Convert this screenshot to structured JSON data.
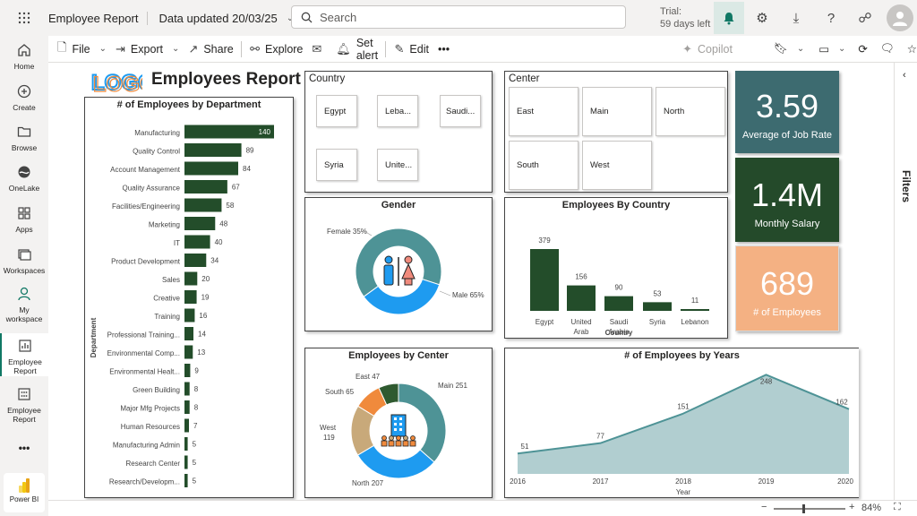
{
  "topbar": {
    "app_title": "Employee Report",
    "data_updated": "Data updated 20/03/25",
    "search_placeholder": "Search",
    "trial_line1": "Trial:",
    "trial_line2": "59 days left"
  },
  "nav": [
    {
      "label": "Home",
      "icon": "home-icon"
    },
    {
      "label": "Create",
      "icon": "plus-circle-icon"
    },
    {
      "label": "Browse",
      "icon": "folder-icon"
    },
    {
      "label": "OneLake",
      "icon": "onelake-icon"
    },
    {
      "label": "Apps",
      "icon": "apps-icon"
    },
    {
      "label": "Workspaces",
      "icon": "workspaces-icon"
    },
    {
      "label": "My",
      "label2": "workspace",
      "icon": "person-icon"
    },
    {
      "label": "Employee",
      "label2": "Report",
      "icon": "report-icon"
    },
    {
      "label": "Employee",
      "label2": "Report",
      "icon": "dashboard-icon"
    },
    {
      "label": "•••",
      "icon": "more-icon"
    }
  ],
  "powerbi_label": "Power BI",
  "cmdbar": {
    "file": "File",
    "export": "Export",
    "share": "Share",
    "explore": "Explore",
    "set_alert": "Set alert",
    "edit": "Edit",
    "more": "•••",
    "copilot": "Copilot"
  },
  "filters_label": "Filters",
  "status": {
    "zoom": "84%"
  },
  "report": {
    "title": "Employees Report",
    "logo_text": "LOGO"
  },
  "country_slicer": {
    "title": "Country",
    "items": [
      "Egypt",
      "Leba...",
      "Saudi...",
      "Syria",
      "Unite..."
    ]
  },
  "center_slicer": {
    "title": "Center",
    "items": [
      "East",
      "Main",
      "North",
      "South",
      "West"
    ]
  },
  "kpis": [
    {
      "value": "3.59",
      "label": "Average of Job Rate",
      "color": "#3d6b70"
    },
    {
      "value": "1.4M",
      "label": "Monthly Salary",
      "color": "#244a2a"
    },
    {
      "value": "689",
      "label": "# of Employees",
      "color": "#f4b183"
    }
  ],
  "chart_data": [
    {
      "type": "bar",
      "orientation": "horizontal",
      "title": "# of Employees by Department",
      "ylabel": "Department",
      "color": "#234d2a",
      "categories": [
        "Manufacturing",
        "Quality Control",
        "Account Management",
        "Quality Assurance",
        "Facilities/Engineering",
        "Marketing",
        "IT",
        "Product Development",
        "Sales",
        "Creative",
        "Training",
        "Professional Training...",
        "Environmental Comp...",
        "Environmental Healt...",
        "Green Building",
        "Major Mfg Projects",
        "Human Resources",
        "Manufacturing Admin",
        "Research Center",
        "Research/Developm..."
      ],
      "values": [
        140,
        89,
        84,
        67,
        58,
        48,
        40,
        34,
        20,
        19,
        16,
        14,
        13,
        9,
        8,
        8,
        7,
        5,
        5,
        5
      ]
    },
    {
      "type": "pie",
      "title": "Gender",
      "slices": [
        {
          "label": "Female 35%",
          "value": 35,
          "color": "#1e9bf0"
        },
        {
          "label": "Male 65%",
          "value": 65,
          "color": "#4e9396"
        }
      ]
    },
    {
      "type": "bar",
      "title": "Employees By Country",
      "xlabel": "Country",
      "color": "#234d2a",
      "categories": [
        "Egypt",
        "United Arab Emirates",
        "Saudi Arabia",
        "Syria",
        "Lebanon"
      ],
      "values": [
        379,
        156,
        90,
        53,
        11
      ]
    },
    {
      "type": "pie",
      "title": "Employees by Center",
      "slices": [
        {
          "label": "Main 251",
          "value": 251,
          "color": "#4e9396"
        },
        {
          "label": "North 207",
          "value": 207,
          "color": "#1e9bf0"
        },
        {
          "label": "West 119",
          "value": 119,
          "color": "#c8a97a"
        },
        {
          "label": "South 65",
          "value": 65,
          "color": "#f08a3c"
        },
        {
          "label": "East 47",
          "value": 47,
          "color": "#2f5a30"
        }
      ]
    },
    {
      "type": "area",
      "title": "# of Employees by Years",
      "xlabel": "Year",
      "color": "#4e9396",
      "x": [
        "2016",
        "2017",
        "2018",
        "2019",
        "2020"
      ],
      "values": [
        51,
        77,
        151,
        248,
        162
      ]
    }
  ]
}
